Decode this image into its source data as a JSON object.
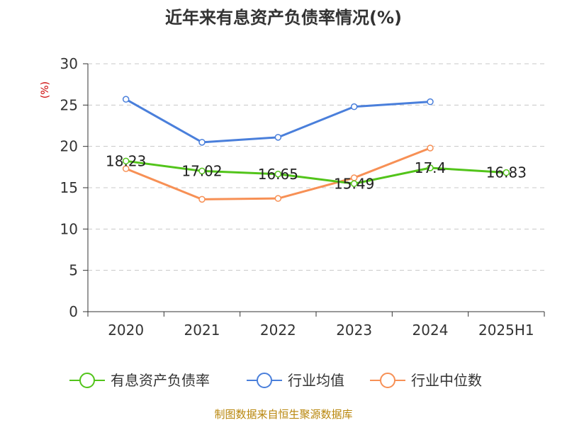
{
  "chart_data": {
    "type": "line",
    "title": "近年来有息资产负债率情况(%)",
    "y_unit_label": "(%)",
    "categories": [
      "2020",
      "2021",
      "2022",
      "2023",
      "2024",
      "2025H1"
    ],
    "ylim": [
      0,
      30
    ],
    "yticks": [
      "0",
      "5",
      "10",
      "15",
      "20",
      "25",
      "30"
    ],
    "grid": true,
    "legend_position": "bottom",
    "series": [
      {
        "name": "有息资产负债率",
        "color": "#52c41a",
        "values": [
          18.23,
          17.02,
          16.65,
          15.49,
          17.4,
          16.83
        ],
        "labels": [
          "18.23",
          "17.02",
          "16.65",
          "15.49",
          "17.4",
          "16.83"
        ]
      },
      {
        "name": "行业均值",
        "color": "#4a7fdb",
        "values": [
          25.7,
          20.5,
          21.1,
          24.8,
          25.4,
          null
        ]
      },
      {
        "name": "行业中位数",
        "color": "#f79055",
        "values": [
          17.3,
          13.6,
          13.7,
          16.2,
          19.8,
          null
        ]
      }
    ]
  },
  "source_text": "制图数据来自恒生聚源数据库"
}
